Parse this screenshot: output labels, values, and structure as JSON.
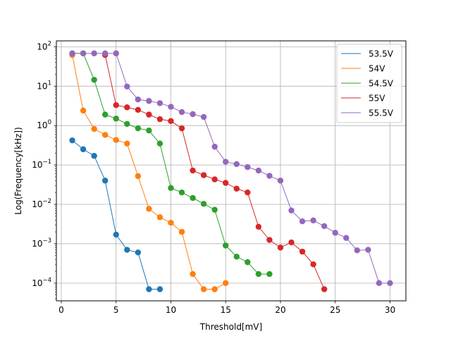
{
  "chart_data": {
    "type": "line",
    "title": "",
    "xlabel": "Threshold[mV]",
    "ylabel": "Log(Frequency[kHz])",
    "xlim": [
      -0.45,
      31.45
    ],
    "ylim_log10": [
      -4.45,
      2.15
    ],
    "yscale": "log",
    "grid": true,
    "legend_position": "top-right",
    "x_ticks": [
      0,
      5,
      10,
      15,
      20,
      25,
      30
    ],
    "x_tick_labels": [
      "0",
      "5",
      "10",
      "15",
      "20",
      "25",
      "30"
    ],
    "y_tick_exponents": [
      2,
      1,
      0,
      -1,
      -2,
      -3,
      -4
    ],
    "y_tick_labels": [
      {
        "base": "10",
        "exp": "2"
      },
      {
        "base": "10",
        "exp": "1"
      },
      {
        "base": "10",
        "exp": "0"
      },
      {
        "base": "10",
        "exp": "−1"
      },
      {
        "base": "10",
        "exp": "−2"
      },
      {
        "base": "10",
        "exp": "−3"
      },
      {
        "base": "10",
        "exp": "−4"
      }
    ],
    "series": [
      {
        "name": "53.5V",
        "color": "#1f77b4",
        "x": [
          1,
          2,
          3,
          4,
          5,
          6,
          7,
          8,
          9
        ],
        "y": [
          0.42,
          0.25,
          0.17,
          0.04,
          0.0017,
          0.0007,
          0.0006,
          7e-05,
          7e-05
        ]
      },
      {
        "name": "54V",
        "color": "#ff7f0e",
        "x": [
          1,
          2,
          3,
          4,
          5,
          6,
          7,
          8,
          9,
          10,
          11,
          12,
          13,
          14,
          15
        ],
        "y": [
          62,
          2.4,
          0.82,
          0.58,
          0.43,
          0.35,
          0.052,
          0.0077,
          0.0047,
          0.0034,
          0.002,
          0.00017,
          7e-05,
          7e-05,
          0.0001
        ]
      },
      {
        "name": "54.5V",
        "color": "#2ca02c",
        "x": [
          1,
          2,
          3,
          4,
          5,
          6,
          7,
          8,
          9,
          10,
          11,
          12,
          13,
          14,
          15,
          16,
          17,
          18,
          19
        ],
        "y": [
          68,
          68,
          14.5,
          1.9,
          1.5,
          1.1,
          0.85,
          0.75,
          0.35,
          0.026,
          0.02,
          0.0145,
          0.0103,
          0.0073,
          0.0009,
          0.00047,
          0.00034,
          0.00017,
          0.00017
        ]
      },
      {
        "name": "55V",
        "color": "#d62728",
        "x": [
          4,
          5,
          6,
          7,
          8,
          9,
          10,
          11,
          12,
          13,
          14,
          15,
          16,
          17,
          18,
          19,
          20,
          21,
          22,
          23,
          24
        ],
        "y": [
          62,
          3.3,
          2.9,
          2.5,
          1.9,
          1.45,
          1.3,
          0.85,
          0.072,
          0.055,
          0.043,
          0.035,
          0.025,
          0.02,
          0.0027,
          0.00125,
          0.0008,
          0.00108,
          0.00063,
          0.0003,
          7e-05
        ]
      },
      {
        "name": "55.5V",
        "color": "#9467bd",
        "x": [
          1,
          2,
          3,
          4,
          5,
          6,
          7,
          8,
          9,
          10,
          11,
          12,
          13,
          14,
          15,
          16,
          17,
          18,
          19,
          20,
          21,
          22,
          23,
          24,
          25,
          26,
          27,
          28,
          29,
          30
        ],
        "y": [
          68,
          68,
          68,
          68,
          68,
          9.8,
          4.6,
          4.2,
          3.7,
          3.0,
          2.2,
          1.95,
          1.65,
          0.29,
          0.12,
          0.105,
          0.088,
          0.072,
          0.053,
          0.04,
          0.007,
          0.0037,
          0.0039,
          0.0028,
          0.0019,
          0.0014,
          0.00068,
          0.0007,
          0.0001,
          0.0001
        ]
      }
    ]
  }
}
